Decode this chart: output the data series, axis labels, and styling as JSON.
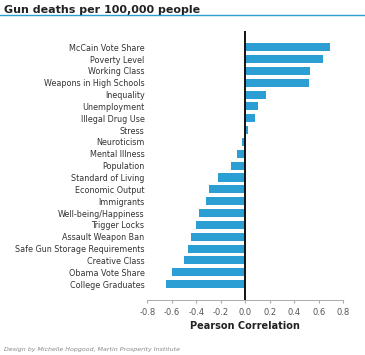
{
  "title": "Gun deaths per 100,000 people",
  "xlabel": "Pearson Correlation",
  "footer": "Design by Michelle Hopgood, Martin Prosperity Institute",
  "categories": [
    "McCain Vote Share",
    "Poverty Level",
    "Working Class",
    "Weapons in High Schools",
    "Inequality",
    "Unemployment",
    "Illegal Drug Use",
    "Stress",
    "Neuroticism",
    "Mental Illness",
    "Population",
    "Standard of Living",
    "Economic Output",
    "Immigrants",
    "Well-being/Happiness",
    "Trigger Locks",
    "Assault Weapon Ban",
    "Safe Gun Storage Requirements",
    "Creative Class",
    "Obama Vote Share",
    "College Graduates"
  ],
  "values": [
    0.69,
    0.63,
    0.53,
    0.52,
    0.17,
    0.1,
    0.08,
    0.02,
    -0.03,
    -0.07,
    -0.12,
    -0.22,
    -0.3,
    -0.32,
    -0.38,
    -0.4,
    -0.44,
    -0.47,
    -0.5,
    -0.6,
    -0.65
  ],
  "bar_color": "#2B9FD4",
  "background_color": "#ffffff",
  "xlim": [
    -0.8,
    0.8
  ],
  "xticks": [
    -0.8,
    -0.6,
    -0.4,
    -0.2,
    0.0,
    0.2,
    0.4,
    0.6,
    0.8
  ],
  "xtick_labels": [
    "-0.8",
    "-0.6",
    "-0.4",
    "-0.2",
    "0.0",
    "0.2",
    "0.4",
    "0.6",
    "0.8"
  ],
  "title_fontsize": 8.0,
  "label_fontsize": 5.8,
  "tick_fontsize": 6.0,
  "xlabel_fontsize": 7.0,
  "footer_fontsize": 4.5,
  "title_color": "#222222",
  "label_color": "#333333",
  "tick_color": "#555555",
  "footer_color": "#888888",
  "spine_color": "#aaaaaa",
  "vline_color": "#111111",
  "title_line_color": "#2B9FD4"
}
